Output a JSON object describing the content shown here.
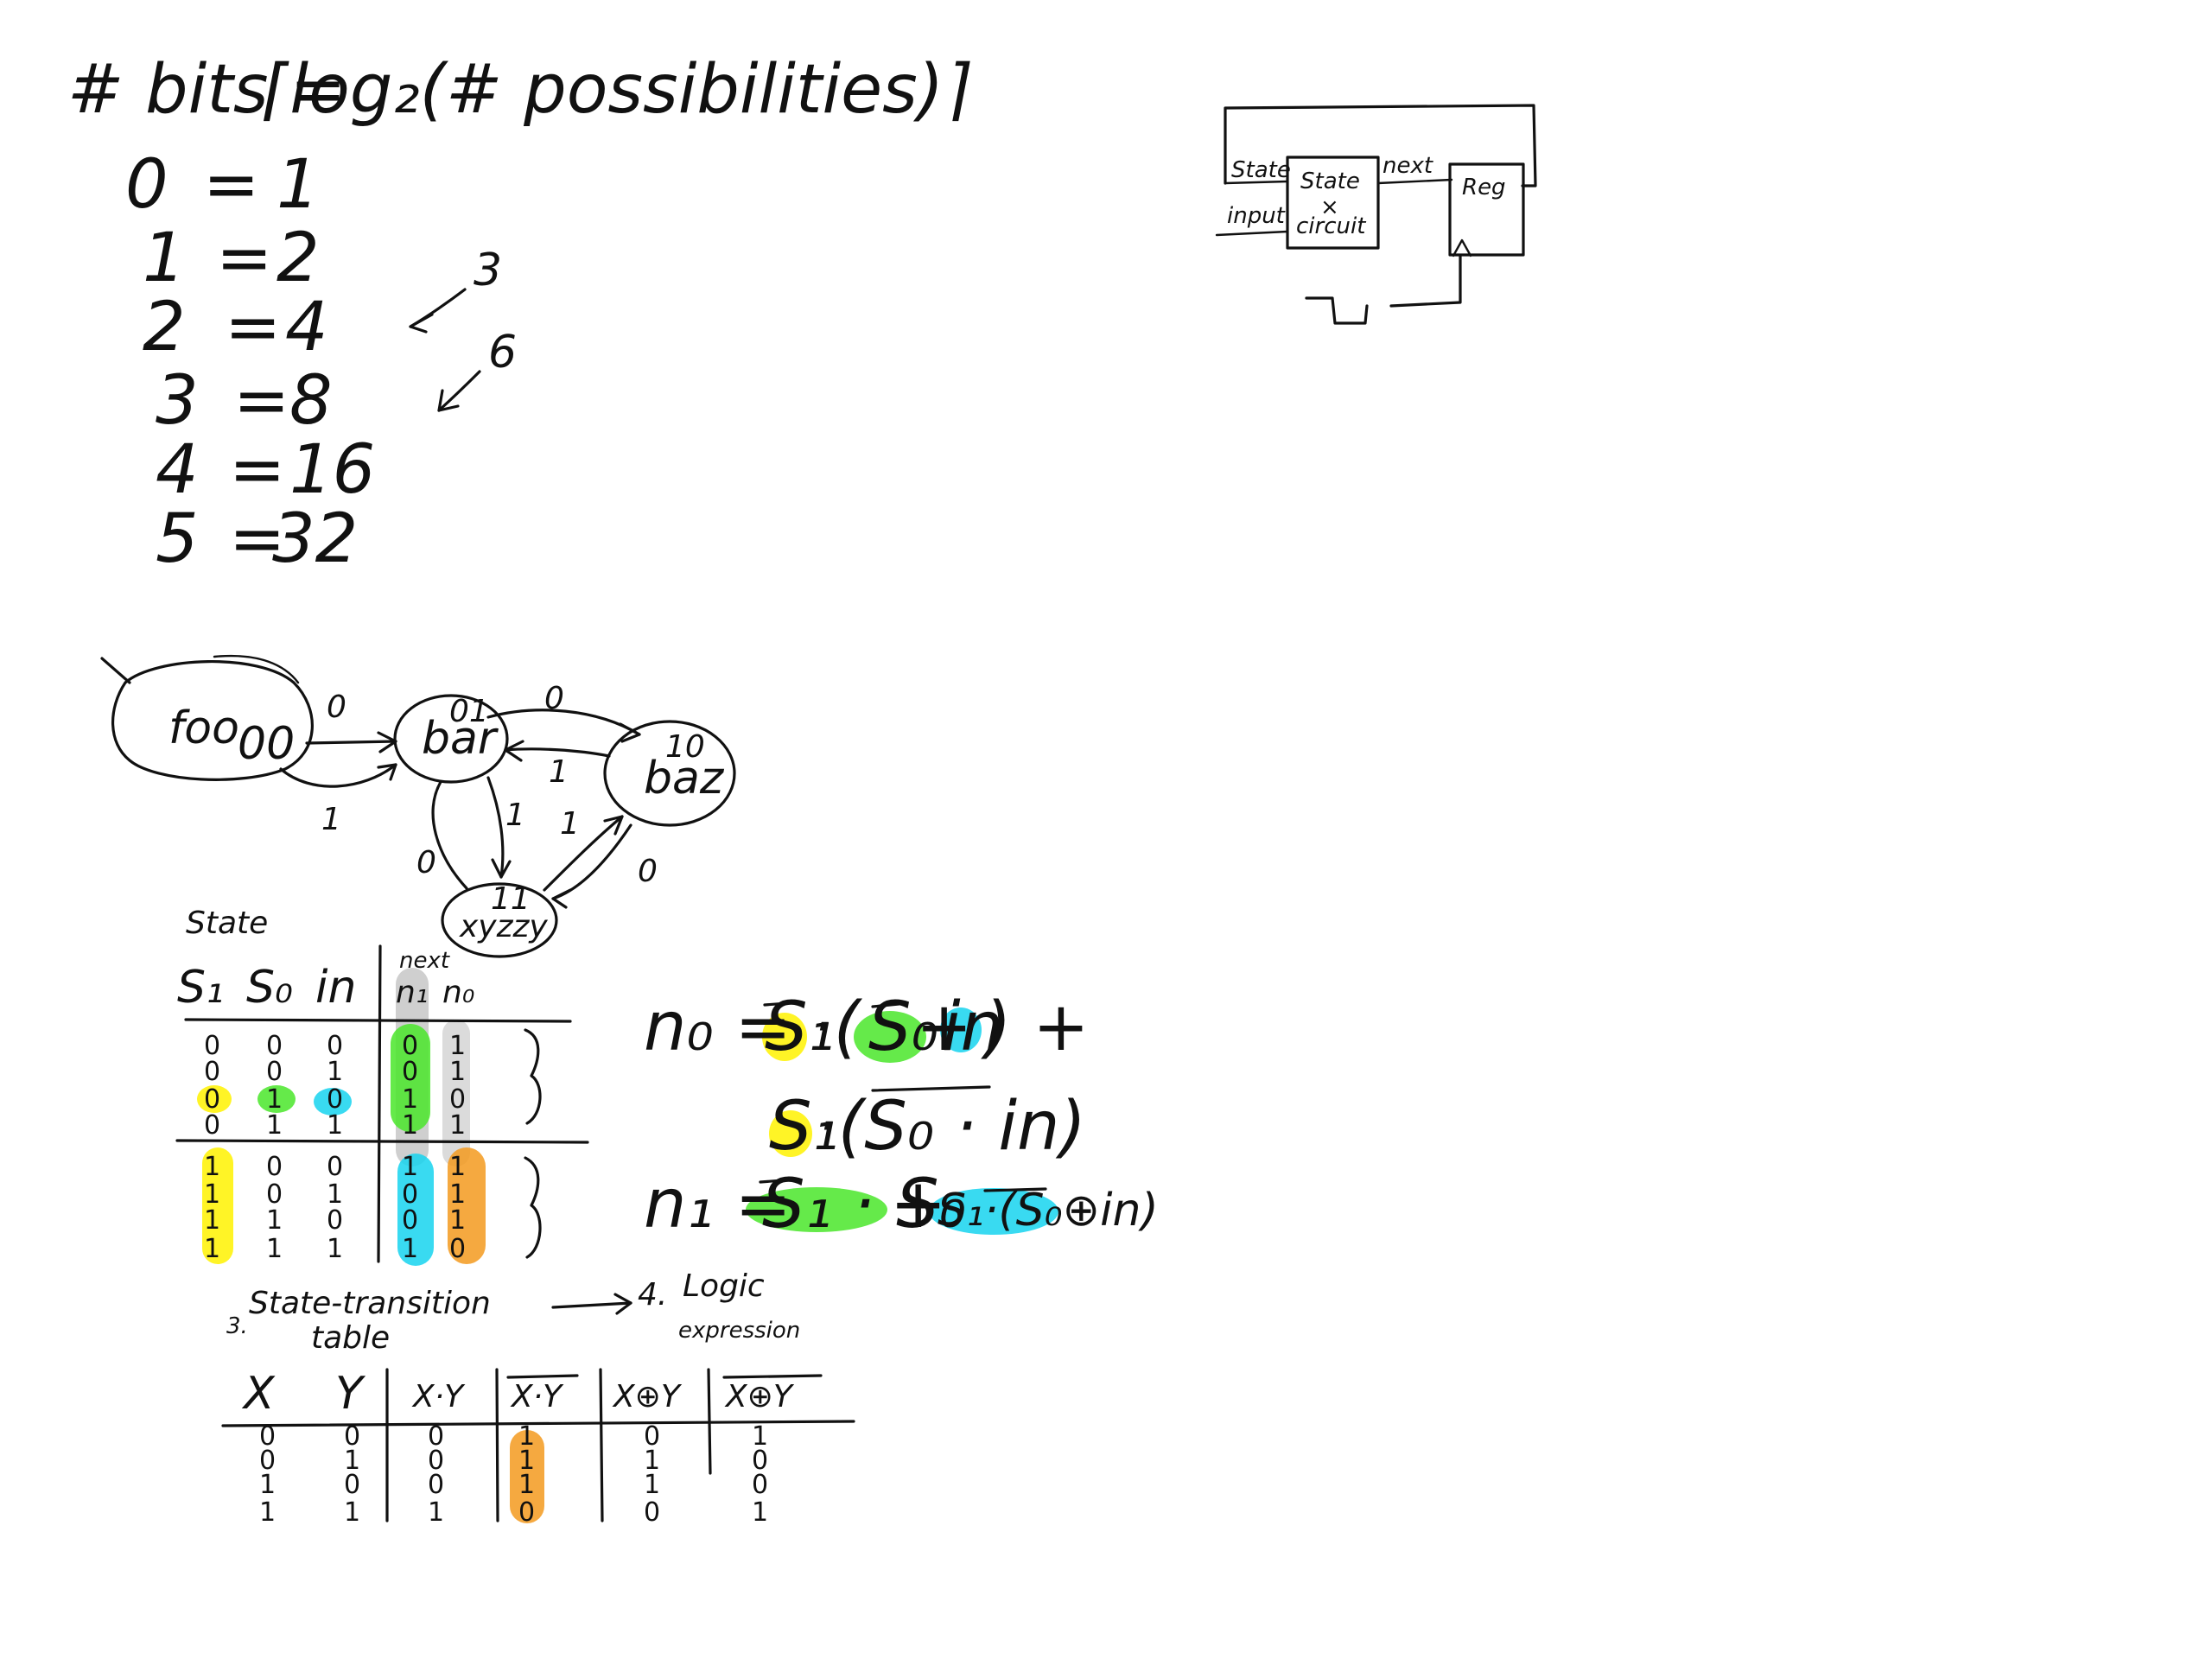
{
  "colors": {
    "ink": "#111111",
    "yellow": "#fff200",
    "green": "#4ae62a",
    "cyan": "#16d4ee",
    "orange": "#f39a1e",
    "gray": "#b8b8b8"
  },
  "bits_formula": {
    "lhs": "# bits =",
    "rhs": "⌈log₂(# possibilities)⌉"
  },
  "bits_table": [
    {
      "n": "0",
      "eq": "=",
      "v": "1"
    },
    {
      "n": "1",
      "eq": "=",
      "v": "2"
    },
    {
      "n": "2",
      "eq": "=",
      "v": "4"
    },
    {
      "n": "3",
      "eq": "=",
      "v": "8"
    },
    {
      "n": "4",
      "eq": "=",
      "v": "16"
    },
    {
      "n": "5",
      "eq": "=",
      "v": "32"
    }
  ],
  "bits_notes": [
    "3",
    "6"
  ],
  "circuit": {
    "state_label": "State",
    "input_label": "input",
    "next_label": "next",
    "box_label_1": "State",
    "box_label_2": "×",
    "box_label_3": "circuit",
    "reg_label": "Reg"
  },
  "fsm": {
    "states": [
      {
        "name": "foo",
        "code": "00"
      },
      {
        "name": "bar",
        "code": "01"
      },
      {
        "name": "baz",
        "code": "10"
      },
      {
        "name": "xyzzy",
        "code": "11"
      }
    ],
    "edge_labels": [
      "0",
      "1",
      "0",
      "1",
      "1",
      "1",
      "0",
      "0"
    ]
  },
  "stt": {
    "title": "State",
    "next_header": "next",
    "headers": [
      "S₁",
      "S₀",
      "in",
      "n₁",
      "n₀"
    ],
    "rows": [
      [
        "0",
        "0",
        "0",
        "0",
        "1"
      ],
      [
        "0",
        "0",
        "1",
        "0",
        "1"
      ],
      [
        "0",
        "1",
        "0",
        "1",
        "0"
      ],
      [
        "0",
        "1",
        "1",
        "1",
        "1"
      ],
      [
        "1",
        "0",
        "0",
        "1",
        "1"
      ],
      [
        "1",
        "0",
        "1",
        "0",
        "1"
      ],
      [
        "1",
        "1",
        "0",
        "0",
        "1"
      ],
      [
        "1",
        "1",
        "1",
        "1",
        "0"
      ]
    ],
    "caption_num": "3.",
    "caption_1": "State-transition",
    "caption_2": "table",
    "caption_arrow": "→",
    "caption_next_num": "4.",
    "caption_next_1": "Logic",
    "caption_next_2": "expression"
  },
  "equations": {
    "n0_lhs": "n₀ =",
    "n0_t1_a": "S₁",
    "n0_t1_b": "·(",
    "n0_t1_c": "S₀",
    "n0_t1_d": "+",
    "n0_t1_e": "in",
    "n0_t1_f": ") +",
    "n0_t2_a": "S₁",
    "n0_t2_b": "·(S₀ · in)",
    "n1_lhs": "n₁ =",
    "n1_t1": "S₁ · S₀",
    "n1_plus": "+",
    "n1_t2": "S₁·(S₀⊕in)"
  },
  "truth": {
    "headers": [
      "X",
      "Y",
      "X·Y",
      "X·Y",
      "X⊕Y",
      "X⊕Y"
    ],
    "rows": [
      [
        "0",
        "0",
        "0",
        "1",
        "0",
        "1"
      ],
      [
        "0",
        "1",
        "0",
        "1",
        "1",
        "0"
      ],
      [
        "1",
        "0",
        "0",
        "1",
        "1",
        "0"
      ],
      [
        "1",
        "1",
        "1",
        "0",
        "0",
        "1"
      ]
    ]
  }
}
